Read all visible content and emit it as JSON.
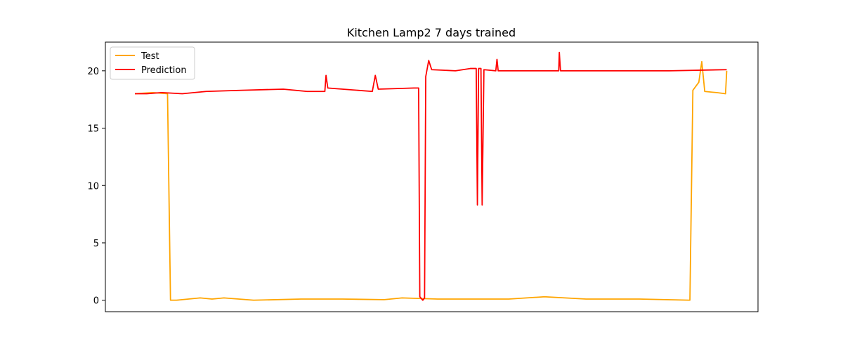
{
  "chart_data": {
    "type": "line",
    "title": "Kitchen Lamp2 7 days trained",
    "xlabel": "",
    "ylabel": "",
    "x_range": [
      0,
      1000
    ],
    "ylim": [
      -1,
      22.5
    ],
    "y_ticks": [
      0,
      5,
      10,
      15,
      20
    ],
    "x_ticks_visible": false,
    "grid": false,
    "legend_position": "top-left",
    "series": [
      {
        "name": "Test",
        "color": "#FFA500",
        "points": [
          [
            0,
            18.0
          ],
          [
            30,
            18.1
          ],
          [
            55,
            18.0
          ],
          [
            60,
            0
          ],
          [
            70,
            0
          ],
          [
            110,
            0.2
          ],
          [
            130,
            0.1
          ],
          [
            150,
            0.2
          ],
          [
            200,
            0
          ],
          [
            280,
            0.1
          ],
          [
            350,
            0.1
          ],
          [
            420,
            0.05
          ],
          [
            450,
            0.2
          ],
          [
            510,
            0.1
          ],
          [
            630,
            0.1
          ],
          [
            690,
            0.3
          ],
          [
            760,
            0.1
          ],
          [
            850,
            0.1
          ],
          [
            935,
            0
          ],
          [
            940,
            18.3
          ],
          [
            950,
            19.0
          ],
          [
            955,
            20.8
          ],
          [
            960,
            18.2
          ],
          [
            980,
            18.1
          ],
          [
            995,
            18.0
          ],
          [
            997,
            20.0
          ]
        ]
      },
      {
        "name": "Prediction",
        "color": "#FF0000",
        "points": [
          [
            0,
            18.0
          ],
          [
            20,
            18.0
          ],
          [
            45,
            18.1
          ],
          [
            80,
            18.0
          ],
          [
            120,
            18.2
          ],
          [
            180,
            18.3
          ],
          [
            250,
            18.4
          ],
          [
            290,
            18.2
          ],
          [
            320,
            18.2
          ],
          [
            322,
            19.6
          ],
          [
            325,
            18.5
          ],
          [
            400,
            18.2
          ],
          [
            405,
            19.6
          ],
          [
            410,
            18.4
          ],
          [
            470,
            18.5
          ],
          [
            478,
            18.5
          ],
          [
            480,
            0.3
          ],
          [
            485,
            0
          ],
          [
            488,
            0.2
          ],
          [
            490,
            19.5
          ],
          [
            495,
            20.9
          ],
          [
            500,
            20.1
          ],
          [
            540,
            20.0
          ],
          [
            565,
            20.2
          ],
          [
            575,
            20.2
          ],
          [
            577,
            8.3
          ],
          [
            579,
            20.2
          ],
          [
            583,
            20.2
          ],
          [
            585,
            8.3
          ],
          [
            588,
            20.1
          ],
          [
            608,
            20.0
          ],
          [
            610,
            21.0
          ],
          [
            612,
            20.0
          ],
          [
            700,
            20.0
          ],
          [
            714,
            20.0
          ],
          [
            715,
            21.6
          ],
          [
            717,
            20.0
          ],
          [
            800,
            20.0
          ],
          [
            900,
            20.0
          ],
          [
            997,
            20.1
          ]
        ]
      }
    ]
  }
}
